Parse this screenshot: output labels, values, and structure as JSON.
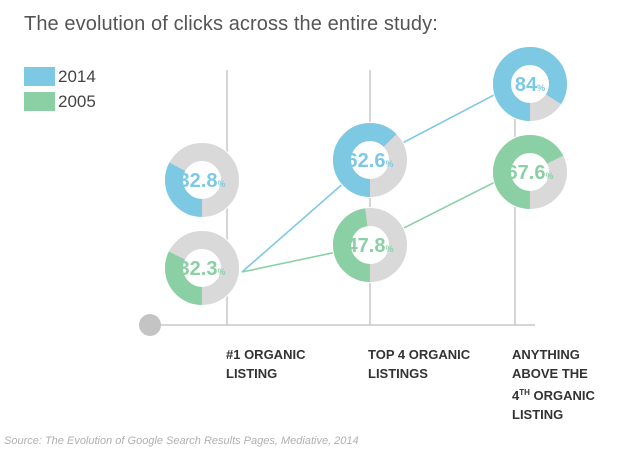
{
  "chart_data": {
    "type": "donut-line",
    "title": "The evolution of clicks across the entire study:",
    "legend_placement": "top-left",
    "series": [
      {
        "name": "2014",
        "color": "#7dc9e3",
        "values": [
          32.8,
          62.6,
          84
        ]
      },
      {
        "name": "2005",
        "color": "#8bd0a4",
        "values": [
          32.3,
          47.8,
          67.6
        ]
      }
    ],
    "value_labels": [
      {
        "main": "32.8",
        "unit": "%"
      },
      {
        "main": "62.6",
        "unit": "%"
      },
      {
        "main": "84",
        "unit": "%"
      },
      {
        "main": "32.3",
        "unit": "%"
      },
      {
        "main": "47.8",
        "unit": "%"
      },
      {
        "main": "67.6",
        "unit": "%"
      }
    ],
    "categories": [
      {
        "lines": [
          "#1 ORGANIC",
          "LISTING"
        ]
      },
      {
        "lines": [
          "TOP 4 ORGANIC",
          "LISTINGS"
        ]
      },
      {
        "lines": [
          "ANYTHING",
          "ABOVE THE",
          "4",
          "TH",
          " ORGANIC",
          "LISTING"
        ]
      }
    ],
    "colors": {
      "track": "#d9d9d9",
      "axis": "#c8c8c8",
      "text_2014": "#7dc9e3",
      "text_2005": "#8bd0a4"
    },
    "source": "Source: The Evolution of Google Search Results Pages, Mediative, 2014"
  }
}
